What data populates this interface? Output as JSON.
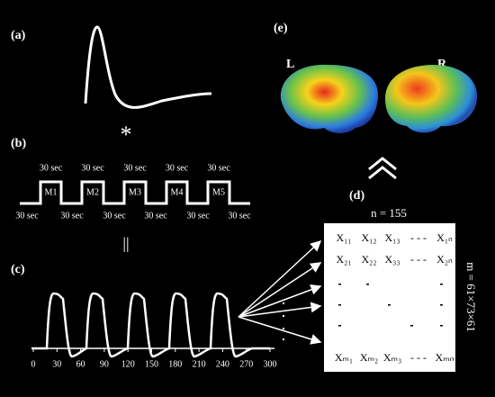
{
  "panel_a": {
    "label": "(a)",
    "marker": "*"
  },
  "panel_b": {
    "label": "(b)",
    "top_labels": [
      "30 sec",
      "30 sec",
      "30 sec",
      "30 sec",
      "30 sec"
    ],
    "bottom_labels": [
      "30 sec",
      "30 sec",
      "30 sec",
      "30 sec",
      "30 sec",
      "30 sec"
    ],
    "blocks": [
      "M1",
      "M2",
      "M3",
      "M4",
      "M5"
    ],
    "equals": "||"
  },
  "panel_c": {
    "label": "(c)",
    "xticks": [
      0,
      30,
      60,
      90,
      120,
      150,
      180,
      210,
      240,
      270,
      300
    ]
  },
  "panel_d": {
    "label": "(d)",
    "n_label": "n = 155",
    "m_label": "m = 61×73×61",
    "rows": [
      [
        "X₁₁",
        "X₁₂",
        "X₁₃",
        "- - -",
        "X₁ₙ"
      ],
      [
        "X₂₁",
        "X₂₂",
        "X₃₃",
        "- - -",
        "X₂ₙ"
      ],
      [
        "Xₘ₁",
        "Xₘ₂",
        "Xₘ₃",
        "- - -",
        "Xₘₙ"
      ]
    ]
  },
  "panel_e": {
    "label": "(e)",
    "left": "L",
    "right": "R"
  }
}
